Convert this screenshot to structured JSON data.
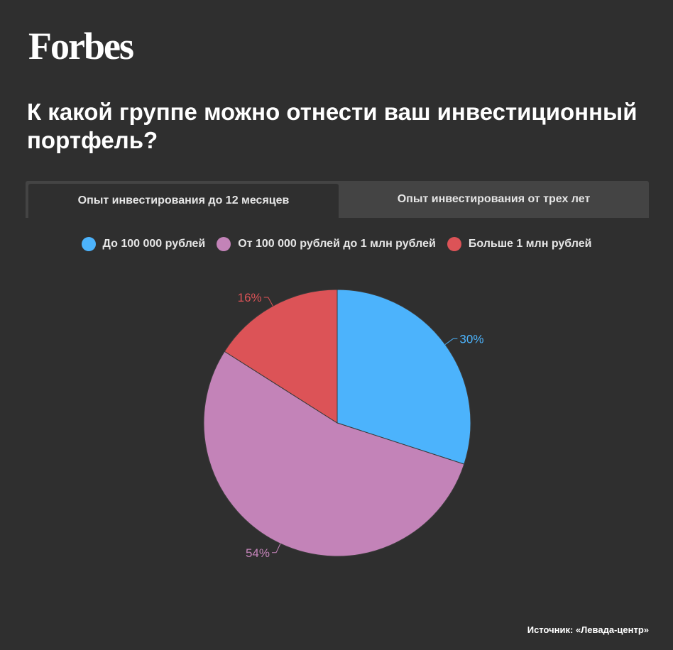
{
  "brand": "Forbes",
  "title": "К какой группе можно отнести ваш инвестиционный портфель?",
  "tabs": [
    {
      "label": "Опыт инвестирования до 12 месяцев",
      "active": true
    },
    {
      "label": "Опыт инвестирования от трех лет",
      "active": false
    }
  ],
  "source": "Источник: «Левада-центр»",
  "chart_data": {
    "type": "pie",
    "legend_position": "top",
    "series": [
      {
        "name": "До 100 000 рублей",
        "value": 30,
        "label": "30%",
        "color": "#4cb3fc"
      },
      {
        "name": "От 100 000 рублей до 1 млн рублей",
        "value": 54,
        "label": "54%",
        "color": "#c383b8"
      },
      {
        "name": "Больше 1 млн рублей",
        "value": 16,
        "label": "16%",
        "color": "#dc5357"
      }
    ]
  }
}
